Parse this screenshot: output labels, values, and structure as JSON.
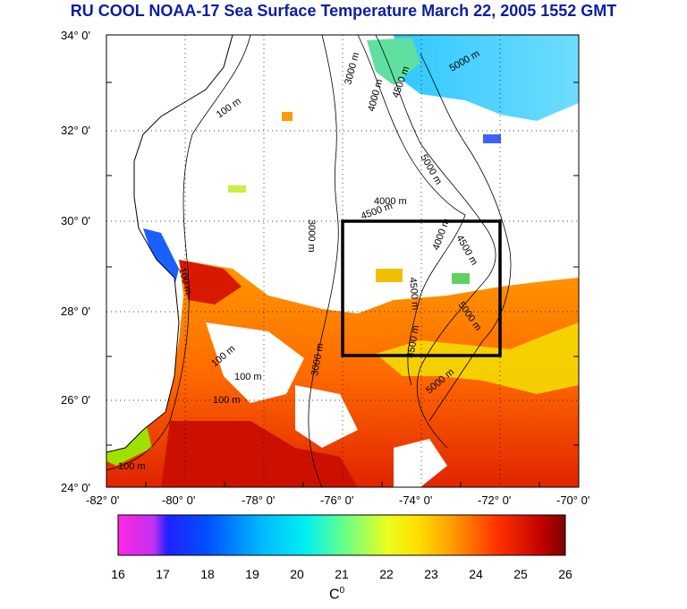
{
  "title": "RU COOL  NOAA-17 Sea Surface Temperature March 22, 2005 1552 GMT",
  "lat_labels": [
    "34° 0'",
    "32° 0'",
    "30° 0'",
    "28° 0'",
    "26° 0'",
    "24° 0'"
  ],
  "lon_labels": [
    "-82° 0'",
    "-80° 0'",
    "-78° 0'",
    "-76° 0'",
    "-74° 0'",
    "-72° 0'",
    "-70° 0'"
  ],
  "contour_labels": {
    "c100a": "100 m",
    "c100b": "100 m",
    "c100c": "100 m",
    "c100d": "100 m",
    "c100e": "100 m",
    "c100f": "100 m",
    "c3000a": "3000 m",
    "c3000b": "3000 m",
    "c3000c": "3000 m",
    "c4000a": "4000 m",
    "c4000b": "4000 m",
    "c4000c": "4000 m",
    "c4500a": "4500 m",
    "c4500b": "4500 m",
    "c4500c": "4500 m",
    "c4500d": "4500 m",
    "c4500e": "4500 m",
    "c5000a": "5000 m",
    "c5000b": "5000 m",
    "c5000c": "5000 m",
    "c5000d": "5000 m"
  },
  "colorbar": {
    "ticks": [
      "16",
      "17",
      "18",
      "19",
      "20",
      "21",
      "22",
      "23",
      "24",
      "25",
      "26"
    ],
    "unit": "C",
    "unit_sup": "0",
    "min": 16,
    "max": 26
  },
  "colors": {
    "title": "#0b1fa0",
    "box": "#000000"
  }
}
